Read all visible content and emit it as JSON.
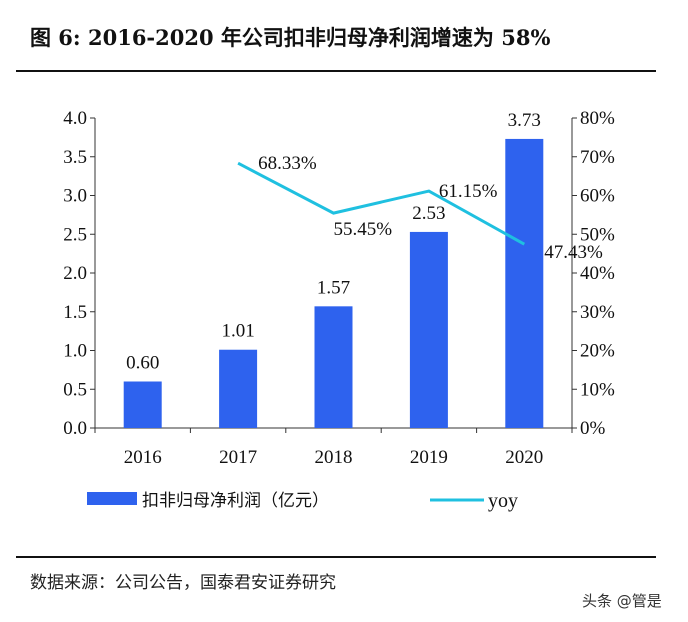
{
  "title": "图 6: 2016-2020 年公司扣非归母净利润增速为 58%",
  "source": "数据来源：公司公告，国泰君安证券研究",
  "watermark": "头条 @管是",
  "colors": {
    "bar": "#2e62ee",
    "line": "#1fc0e0"
  },
  "chart_data": {
    "type": "bar+line",
    "categories": [
      "2016",
      "2017",
      "2018",
      "2019",
      "2020"
    ],
    "series": [
      {
        "name": "扣非归母净利润（亿元）",
        "type": "bar",
        "axis": "left",
        "values": [
          0.6,
          1.01,
          1.57,
          2.53,
          3.73
        ],
        "labels": [
          "0.60",
          "1.01",
          "1.57",
          "2.53",
          "3.73"
        ]
      },
      {
        "name": "yoy",
        "type": "line",
        "axis": "right",
        "values": [
          null,
          68.33,
          55.45,
          61.15,
          47.43
        ],
        "labels": [
          "",
          "68.33%",
          "55.45%",
          "61.15%",
          "47.43%"
        ]
      }
    ],
    "left_axis": {
      "ylim": [
        0,
        4.0
      ],
      "ticks": [
        "0.0",
        "0.5",
        "1.0",
        "1.5",
        "2.0",
        "2.5",
        "3.0",
        "3.5",
        "4.0"
      ]
    },
    "right_axis": {
      "ylim": [
        0,
        80
      ],
      "ticks": [
        "0%",
        "10%",
        "20%",
        "30%",
        "40%",
        "50%",
        "60%",
        "70%",
        "80%"
      ]
    },
    "grid": false,
    "legend": "bottom"
  }
}
